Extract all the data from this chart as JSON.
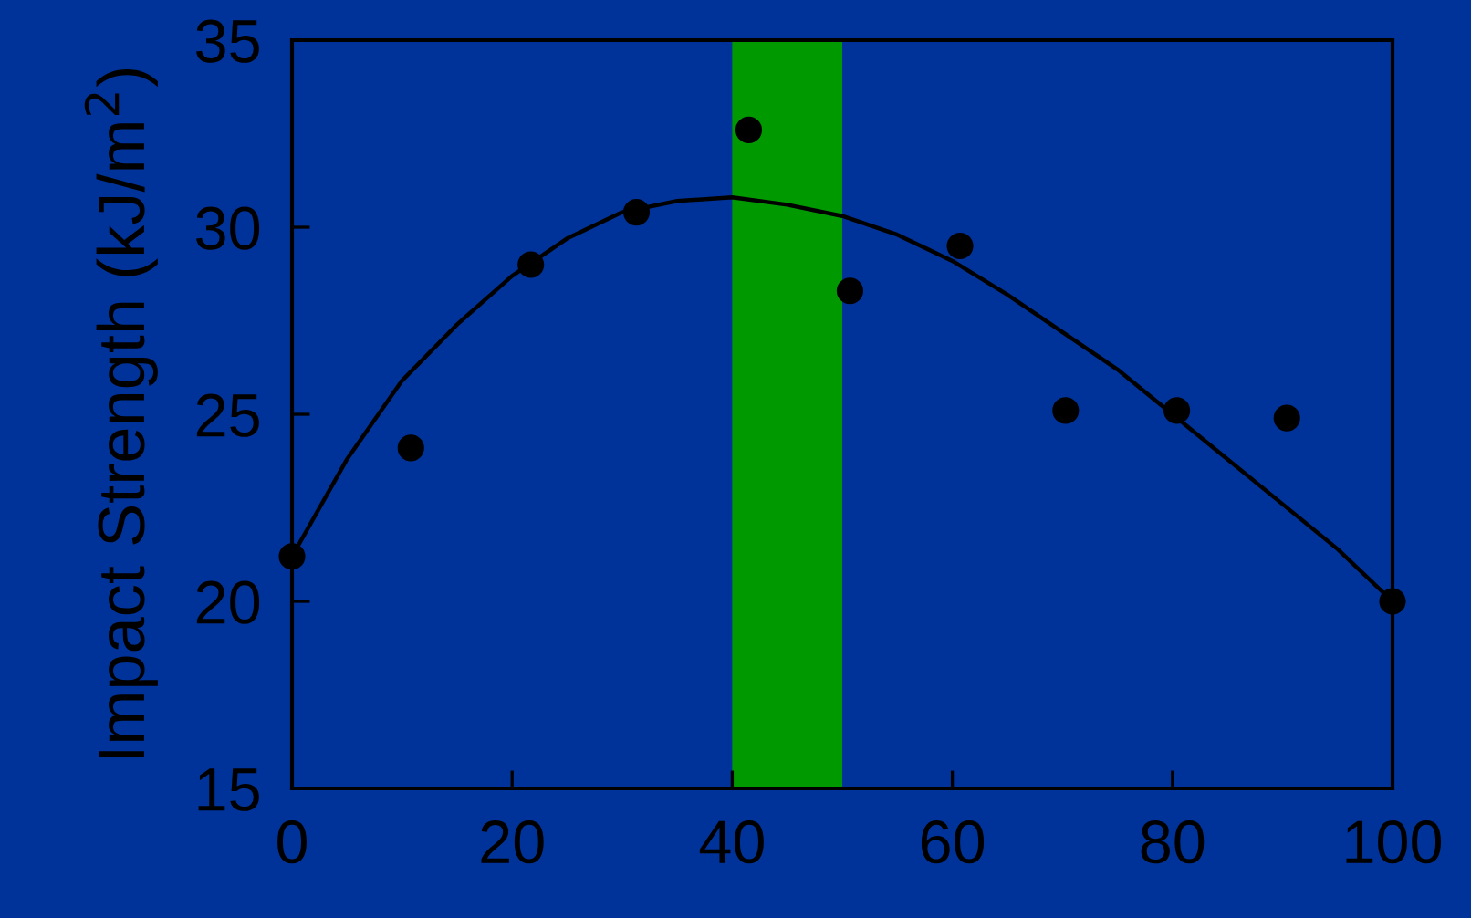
{
  "chart_data": {
    "type": "scatter",
    "ylabel": "Impact Strength (kJ/m$^{2}$)",
    "series": [
      {
        "color": "#000000",
        "marker": "circle",
        "x": [
          0,
          10.8,
          21.7,
          31.3,
          41.5,
          50.7,
          60.7,
          70.3,
          80.4,
          90.4,
          100
        ],
        "values": [
          21.2,
          24.1,
          29.0,
          30.4,
          32.6,
          28.3,
          29.5,
          25.1,
          25.1,
          24.9,
          20.0
        ]
      },
      {
        "type": "line",
        "color": "#000000",
        "marker": "none",
        "line_style": "solid",
        "x": [
          0,
          5,
          10,
          15,
          20,
          25,
          30,
          35,
          40,
          45,
          50,
          55,
          60,
          65,
          70,
          75,
          80,
          85,
          90,
          95,
          100
        ],
        "values": [
          21.2,
          23.8,
          25.9,
          27.4,
          28.7,
          29.7,
          30.4,
          30.7,
          30.8,
          30.6,
          30.3,
          29.8,
          29.1,
          28.2,
          27.2,
          26.2,
          25.0,
          23.8,
          22.6,
          21.4,
          20.0
        ]
      }
    ],
    "xlim": [
      0,
      100
    ],
    "xticks": [
      0,
      20,
      40,
      60,
      80,
      100
    ],
    "ylim": [
      15,
      35
    ],
    "yticks": [
      15,
      20,
      25,
      30,
      35
    ],
    "bands": [
      {
        "axis": "x",
        "from": 40,
        "to": 50,
        "color": "#009900"
      }
    ],
    "grid": false,
    "legend": false
  }
}
